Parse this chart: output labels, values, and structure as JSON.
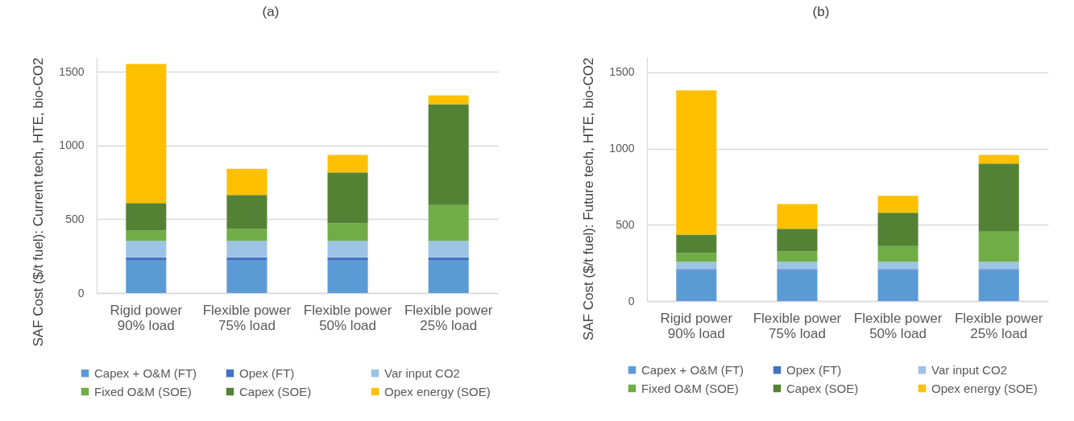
{
  "chart_data": [
    {
      "type": "bar",
      "title": "(a)",
      "ylabel": "SAF Cost ($/t fuel): Current tech, HTE, bio-CO2",
      "stacked": true,
      "categories": [
        "Rigid power\n90% load",
        "Flexible power\n75% load",
        "Flexible power\n50% load",
        "Flexible power\n25% load"
      ],
      "series": [
        {
          "name": "Capex + O&M (FT)",
          "color": "#5b9bd5",
          "values": [
            220,
            220,
            220,
            220
          ]
        },
        {
          "name": "Opex (FT)",
          "color": "#4472c4",
          "values": [
            22,
            22,
            22,
            22
          ]
        },
        {
          "name": "Var input CO2",
          "color": "#9dc3e6",
          "values": [
            112,
            112,
            112,
            112
          ]
        },
        {
          "name": "Fixed O&M (SOE)",
          "color": "#70ad47",
          "values": [
            69,
            80,
            118,
            242
          ]
        },
        {
          "name": "Capex (SOE)",
          "color": "#548235",
          "values": [
            187,
            231,
            346,
            685
          ]
        },
        {
          "name": "Opex energy (SOE)",
          "color": "#ffc000",
          "values": [
            943,
            177,
            119,
            60
          ]
        }
      ],
      "ylim": [
        0,
        1600
      ],
      "yticks": [
        0,
        500,
        1000,
        1500
      ],
      "grid": "y",
      "legend": "bottom"
    },
    {
      "type": "bar",
      "title": "(b)",
      "ylabel": "SAF Cost ($/t fuel): Future tech, HTE, bio-CO2",
      "stacked": true,
      "categories": [
        "Rigid power\n90% load",
        "Flexible power\n75% load",
        "Flexible power\n50% load",
        "Flexible power\n25% load"
      ],
      "series": [
        {
          "name": "Capex + O&M (FT)",
          "color": "#5b9bd5",
          "values": [
            203,
            203,
            203,
            203
          ]
        },
        {
          "name": "Opex (FT)",
          "color": "#4472c4",
          "values": [
            7,
            7,
            7,
            7
          ]
        },
        {
          "name": "Var input CO2",
          "color": "#9dc3e6",
          "values": [
            47,
            47,
            47,
            47
          ]
        },
        {
          "name": "Fixed O&M (SOE)",
          "color": "#70ad47",
          "values": [
            59,
            69,
            103,
            198
          ]
        },
        {
          "name": "Capex (SOE)",
          "color": "#548235",
          "values": [
            119,
            148,
            220,
            447
          ]
        },
        {
          "name": "Opex energy (SOE)",
          "color": "#ffc000",
          "values": [
            947,
            162,
            111,
            57
          ]
        }
      ],
      "ylim": [
        0,
        1600
      ],
      "yticks": [
        0,
        500,
        1000,
        1500
      ],
      "grid": "y",
      "legend": "bottom"
    }
  ]
}
